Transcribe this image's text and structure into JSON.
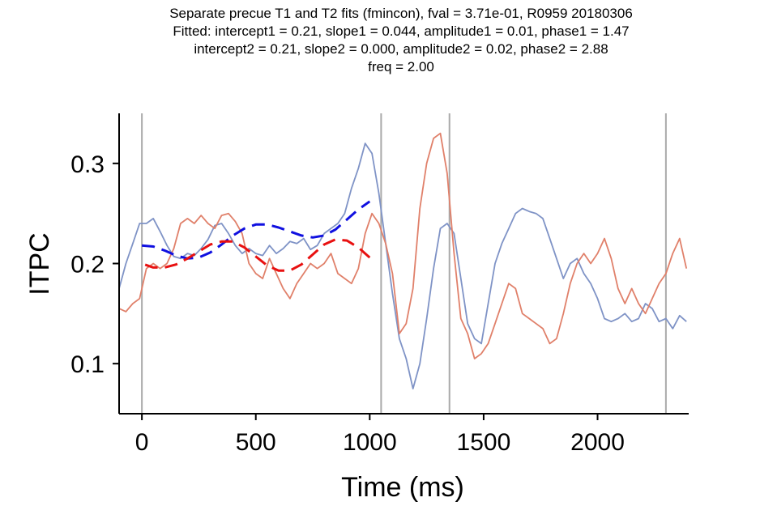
{
  "chart_data": {
    "type": "line",
    "title_lines": [
      "Separate precue T1 and T2 fits (fmincon), fval = 3.71e-01, R0959 20180306",
      "Fitted: intercept1 = 0.21, slope1 = 0.044, amplitude1 = 0.01, phase1 = 1.47",
      "intercept2 = 0.21, slope2 = 0.000, amplitude2 = 0.02, phase2 = 2.88",
      "freq = 2.00"
    ],
    "xlabel": "Time (ms)",
    "ylabel": "ITPC",
    "xlim": [
      -100,
      2400
    ],
    "ylim": [
      0.05,
      0.35
    ],
    "xticks": [
      0,
      500,
      1000,
      1500,
      2000
    ],
    "yticks": [
      0.1,
      0.2,
      0.3
    ],
    "ytick_labels": [
      "0.1",
      "0.2",
      "0.3"
    ],
    "grid": false,
    "vlines": [
      0,
      1050,
      1350,
      2300
    ],
    "colors": {
      "t1_data": "#7f93c6",
      "t2_data": "#e0806a",
      "t1_fit": "#1010e0",
      "t2_fit": "#e81010",
      "vline": "#aaaaaa"
    },
    "series": [
      {
        "key": "t1_data",
        "style": "solid",
        "x": [
          -100,
          -70,
          -40,
          -10,
          20,
          50,
          80,
          110,
          140,
          170,
          200,
          230,
          260,
          290,
          320,
          350,
          380,
          410,
          440,
          470,
          500,
          530,
          560,
          590,
          620,
          650,
          680,
          710,
          740,
          770,
          800,
          830,
          860,
          890,
          920,
          950,
          980,
          1010,
          1040,
          1070,
          1100,
          1130,
          1160,
          1190,
          1220,
          1250,
          1280,
          1310,
          1340,
          1370,
          1400,
          1430,
          1460,
          1490,
          1520,
          1550,
          1580,
          1610,
          1640,
          1670,
          1700,
          1730,
          1760,
          1790,
          1820,
          1850,
          1880,
          1910,
          1940,
          1970,
          2000,
          2030,
          2060,
          2090,
          2120,
          2150,
          2180,
          2210,
          2240,
          2270,
          2300,
          2330,
          2360,
          2390
        ],
        "y": [
          0.175,
          0.2,
          0.22,
          0.24,
          0.24,
          0.245,
          0.232,
          0.218,
          0.207,
          0.205,
          0.21,
          0.208,
          0.215,
          0.224,
          0.238,
          0.24,
          0.23,
          0.218,
          0.21,
          0.215,
          0.21,
          0.208,
          0.218,
          0.21,
          0.215,
          0.222,
          0.22,
          0.225,
          0.214,
          0.218,
          0.23,
          0.235,
          0.24,
          0.25,
          0.275,
          0.295,
          0.32,
          0.31,
          0.27,
          0.22,
          0.17,
          0.125,
          0.105,
          0.075,
          0.1,
          0.145,
          0.195,
          0.235,
          0.24,
          0.23,
          0.185,
          0.14,
          0.125,
          0.12,
          0.16,
          0.2,
          0.22,
          0.235,
          0.25,
          0.255,
          0.252,
          0.25,
          0.245,
          0.225,
          0.205,
          0.185,
          0.2,
          0.205,
          0.19,
          0.18,
          0.165,
          0.145,
          0.142,
          0.145,
          0.15,
          0.142,
          0.145,
          0.16,
          0.155,
          0.142,
          0.145,
          0.135,
          0.148,
          0.142
        ]
      },
      {
        "key": "t2_data",
        "style": "solid",
        "x": [
          -100,
          -70,
          -40,
          -10,
          20,
          50,
          80,
          110,
          140,
          170,
          200,
          230,
          260,
          290,
          320,
          350,
          380,
          410,
          440,
          470,
          500,
          530,
          560,
          590,
          620,
          650,
          680,
          710,
          740,
          770,
          800,
          830,
          860,
          890,
          920,
          950,
          980,
          1010,
          1040,
          1070,
          1100,
          1130,
          1160,
          1190,
          1220,
          1250,
          1280,
          1310,
          1340,
          1370,
          1400,
          1430,
          1460,
          1490,
          1520,
          1550,
          1580,
          1610,
          1640,
          1670,
          1700,
          1730,
          1760,
          1790,
          1820,
          1850,
          1880,
          1910,
          1940,
          1970,
          2000,
          2030,
          2060,
          2090,
          2120,
          2150,
          2180,
          2210,
          2240,
          2270,
          2300,
          2330,
          2360,
          2390
        ],
        "y": [
          0.155,
          0.152,
          0.16,
          0.165,
          0.195,
          0.2,
          0.195,
          0.2,
          0.215,
          0.24,
          0.245,
          0.24,
          0.248,
          0.24,
          0.235,
          0.248,
          0.25,
          0.242,
          0.23,
          0.2,
          0.19,
          0.185,
          0.205,
          0.19,
          0.175,
          0.165,
          0.18,
          0.19,
          0.2,
          0.195,
          0.2,
          0.21,
          0.19,
          0.185,
          0.18,
          0.195,
          0.23,
          0.25,
          0.24,
          0.22,
          0.19,
          0.13,
          0.14,
          0.175,
          0.255,
          0.3,
          0.325,
          0.33,
          0.29,
          0.21,
          0.145,
          0.13,
          0.105,
          0.11,
          0.12,
          0.14,
          0.16,
          0.18,
          0.175,
          0.15,
          0.145,
          0.14,
          0.135,
          0.12,
          0.125,
          0.15,
          0.18,
          0.2,
          0.21,
          0.2,
          0.21,
          0.225,
          0.205,
          0.175,
          0.16,
          0.175,
          0.16,
          0.15,
          0.165,
          0.18,
          0.19,
          0.21,
          0.225,
          0.195
        ]
      },
      {
        "key": "t1_fit",
        "style": "dashed",
        "x": [
          0,
          50,
          100,
          150,
          200,
          250,
          300,
          350,
          400,
          450,
          500,
          550,
          600,
          650,
          700,
          750,
          800,
          850,
          900,
          950,
          1000
        ],
        "y": [
          0.218,
          0.217,
          0.213,
          0.208,
          0.205,
          0.206,
          0.211,
          0.219,
          0.228,
          0.235,
          0.239,
          0.239,
          0.236,
          0.232,
          0.228,
          0.226,
          0.228,
          0.234,
          0.244,
          0.254,
          0.262
        ]
      },
      {
        "key": "t2_fit",
        "style": "dashed",
        "x": [
          1000,
          950,
          900,
          850,
          800,
          750,
          700,
          650,
          600,
          550,
          500,
          450,
          400,
          350,
          300,
          250,
          200,
          150,
          100,
          50,
          0
        ],
        "y": [
          0.206,
          0.216,
          0.223,
          0.224,
          0.219,
          0.209,
          0.199,
          0.193,
          0.193,
          0.198,
          0.207,
          0.216,
          0.222,
          0.222,
          0.219,
          0.212,
          0.205,
          0.199,
          0.196,
          0.196,
          0.2
        ]
      }
    ]
  }
}
